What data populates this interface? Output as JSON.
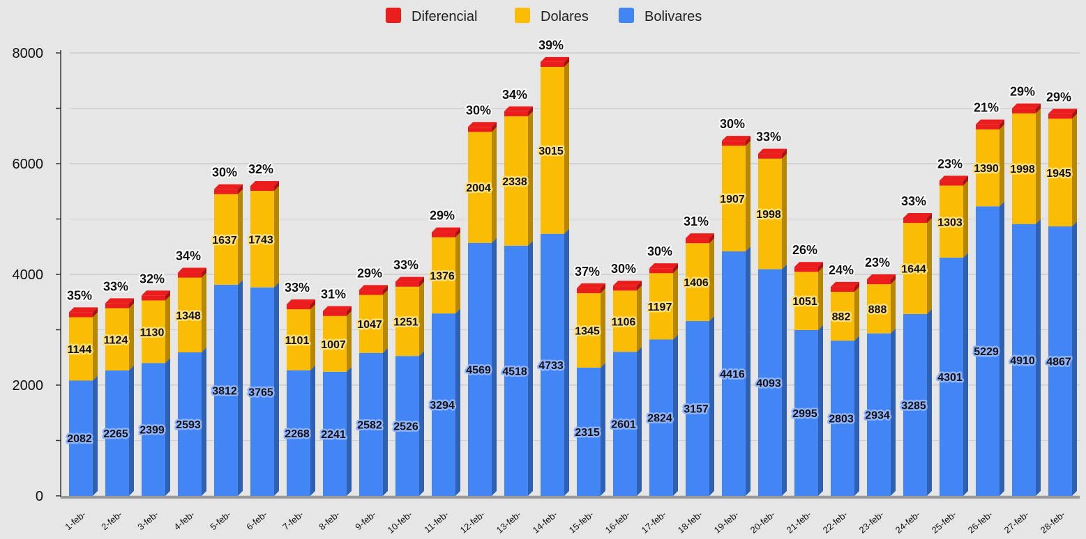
{
  "chart_data": {
    "type": "bar",
    "stacked": true,
    "categories": [
      "1-feb-",
      "2-feb-",
      "3-feb-",
      "4-feb-",
      "5-feb-",
      "6-feb-",
      "7-feb-",
      "8-feb-",
      "9-feb-",
      "10-feb-",
      "11-feb-",
      "12-feb-",
      "13-feb-",
      "14-feb-",
      "15-feb-",
      "16-feb-",
      "17-feb-",
      "18-feb-",
      "19-feb-",
      "20-feb-",
      "21-feb-",
      "22-feb-",
      "23-feb-",
      "24-feb-",
      "25-feb-",
      "26-feb-",
      "27-feb-",
      "28-feb-"
    ],
    "series": [
      {
        "name": "Bolivares",
        "color": "#4285f4",
        "values": [
          2082,
          2265,
          2399,
          2593,
          3812,
          3765,
          2268,
          2241,
          2582,
          2526,
          3294,
          4569,
          4518,
          4733,
          2315,
          2601,
          2824,
          3157,
          4416,
          4093,
          2995,
          2803,
          2934,
          3285,
          4301,
          5229,
          4910,
          4867
        ]
      },
      {
        "name": "Dolares",
        "color": "#fbbc04",
        "values": [
          1144,
          1124,
          1130,
          1348,
          1637,
          1743,
          1101,
          1007,
          1047,
          1251,
          1376,
          2004,
          2338,
          3015,
          1345,
          1106,
          1197,
          1406,
          1907,
          1998,
          1051,
          882,
          888,
          1644,
          1303,
          1390,
          1998,
          1945
        ]
      },
      {
        "name": "Diferencial",
        "color": "#ea1c1c",
        "values": [
          90,
          90,
          90,
          90,
          90,
          90,
          90,
          90,
          90,
          90,
          90,
          90,
          90,
          90,
          90,
          90,
          90,
          90,
          90,
          90,
          90,
          90,
          90,
          90,
          90,
          90,
          90,
          90
        ]
      }
    ],
    "percent_labels": [
      "35%",
      "33%",
      "32%",
      "34%",
      "30%",
      "32%",
      "33%",
      "31%",
      "29%",
      "33%",
      "29%",
      "30%",
      "34%",
      "39%",
      "37%",
      "30%",
      "30%",
      "31%",
      "30%",
      "33%",
      "26%",
      "24%",
      "23%",
      "33%",
      "23%",
      "21%",
      "29%",
      "29%"
    ],
    "legend": [
      "Diferencial",
      "Dolares",
      "Bolivares"
    ],
    "legend_position": "top",
    "yticks": [
      "0",
      "2000",
      "4000",
      "6000",
      "8000"
    ],
    "ylim": [
      0,
      8000
    ],
    "grid": true,
    "title": "",
    "xlabel": "",
    "ylabel": ""
  }
}
